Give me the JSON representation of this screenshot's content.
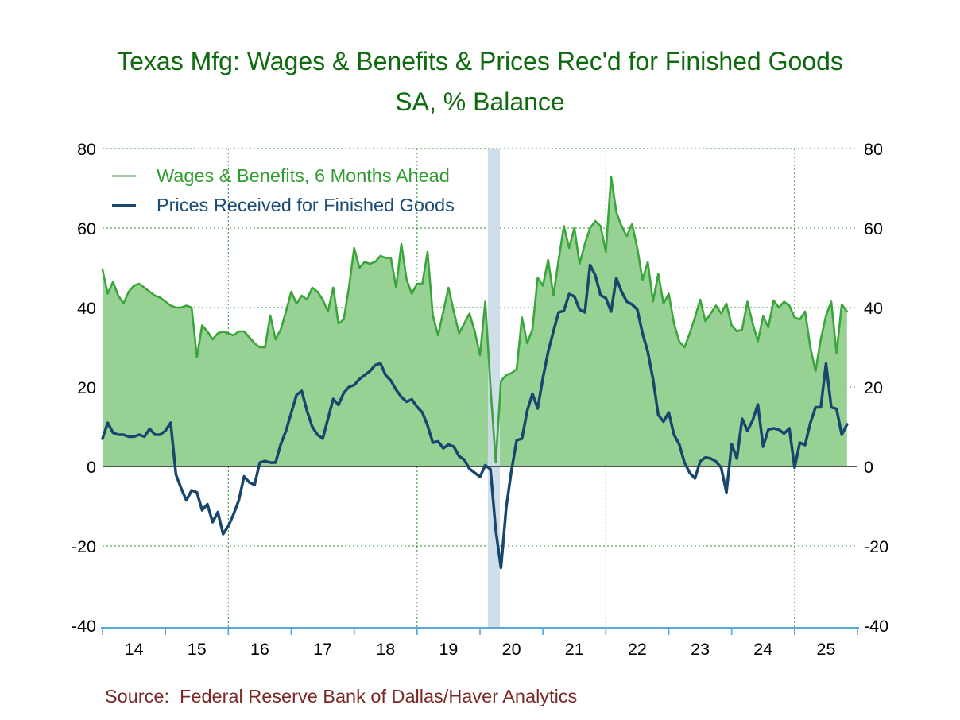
{
  "title": {
    "line1": "Texas Mfg: Wages & Benefits & Prices Rec'd for Finished Goods",
    "line2": "SA, % Balance",
    "color": "#0f6a0f"
  },
  "source": "Source:  Federal Reserve Bank of Dallas/Haver Analytics",
  "source_color": "#7a2823",
  "legend": [
    {
      "label": "Wages & Benefits, 6 Months Ahead",
      "text_color": "#2f9e2f",
      "swatch_color": "#9fce9f",
      "swatch_thickness": 3
    },
    {
      "label": "Prices Received for Finished Goods",
      "text_color": "#1b4a74",
      "swatch_color": "#17466e",
      "swatch_thickness": 4
    }
  ],
  "chart_data": {
    "type": "area",
    "start": "2014-01",
    "frequency": "monthly",
    "x_labels": [
      "14",
      "15",
      "16",
      "17",
      "18",
      "19",
      "20",
      "21",
      "22",
      "23",
      "24",
      "25"
    ],
    "y_ticks": [
      80,
      60,
      40,
      20,
      0,
      -20,
      -40
    ],
    "ylim": [
      -40,
      80
    ],
    "xlabel": "",
    "ylabel": "SA, % Balance",
    "grid": {
      "h_values": [
        80,
        60,
        40,
        20,
        -20
      ],
      "v_years": [
        2016,
        2019,
        2022,
        2025
      ],
      "color": "#2e8b2e",
      "style": "dashed"
    },
    "recession_band": {
      "from": "2020-02",
      "to": "2020-04",
      "color": "#ccdbe7"
    },
    "zero_line_color": "#1a1a1a",
    "axis_color": "#5ba8db",
    "tick_label_color": "#000000",
    "legend_position": "top-left",
    "series": [
      {
        "name": "Wages & Benefits, 6 Months Ahead",
        "type": "area",
        "fill_color": "#97d294",
        "line_color": "#3aa53a",
        "values": [
          49.5,
          43.5,
          46.5,
          43,
          41,
          44,
          45.5,
          46,
          45,
          44,
          43,
          42.5,
          41.5,
          40.5,
          40,
          40,
          40.5,
          40,
          27.5,
          35.5,
          34,
          32,
          33.5,
          34,
          33.5,
          33,
          34,
          34,
          32.5,
          31,
          30,
          30,
          38,
          32,
          34.5,
          39,
          44,
          41,
          43,
          42,
          45,
          44,
          42,
          39,
          45,
          36,
          37,
          45,
          55,
          50,
          51.5,
          51,
          51.5,
          53,
          52.5,
          52.5,
          45,
          56,
          47,
          43.5,
          46,
          46,
          54,
          38,
          33,
          39,
          45,
          39,
          33.5,
          36,
          38.5,
          34,
          28,
          41.5,
          20,
          1,
          21.5,
          23,
          23.5,
          24.5,
          37.5,
          31,
          34.5,
          47.5,
          45.5,
          52,
          43,
          52,
          60.5,
          55,
          60,
          51,
          56,
          60,
          61.8,
          60.5,
          54,
          73,
          64,
          60.5,
          58,
          61,
          55,
          47,
          51.5,
          41.5,
          48.5,
          41,
          43.5,
          36,
          31.5,
          30,
          33.5,
          37.5,
          42,
          36.5,
          38.5,
          40.5,
          38.5,
          41,
          35.5,
          34,
          34.5,
          41.5,
          36,
          31.5,
          37.8,
          35,
          41.8,
          40,
          41.5,
          40.5,
          37.5,
          37,
          39,
          30,
          24,
          32,
          38,
          41.5,
          28.5,
          40.8,
          39
        ]
      },
      {
        "name": "Prices Received for Finished Goods",
        "type": "line",
        "line_color": "#17466e",
        "values": [
          7,
          11,
          8.5,
          8,
          8,
          7.5,
          7.5,
          8,
          7.5,
          9.5,
          8,
          8,
          9,
          11,
          -2,
          -5.5,
          -8.5,
          -6,
          -6.5,
          -11,
          -9.5,
          -14,
          -11.5,
          -17,
          -15,
          -12,
          -8.5,
          -2.5,
          -4,
          -4.6,
          1,
          1.4,
          1,
          1,
          5.6,
          9,
          13.5,
          18,
          19,
          14,
          10,
          8,
          7,
          12,
          17,
          15.5,
          18.5,
          20,
          20.5,
          22,
          23,
          24,
          25.5,
          26,
          23,
          21.6,
          19.3,
          17.5,
          16.3,
          16.9,
          15,
          13.6,
          10.3,
          6,
          6.3,
          4.6,
          5.5,
          5,
          2.6,
          1.7,
          -0.6,
          -1.6,
          -2.6,
          0.3,
          -0.7,
          -16,
          -25.5,
          -10.3,
          -1,
          6.6,
          7,
          14,
          18.3,
          14.6,
          22.3,
          28.9,
          34,
          38.8,
          39.2,
          43.4,
          42.8,
          39.5,
          38.8,
          50.7,
          48.1,
          43.1,
          42.4,
          39,
          47.4,
          44,
          41.5,
          40.8,
          39.5,
          33.5,
          28.9,
          22,
          13,
          11.3,
          13.6,
          8,
          5.6,
          1,
          -1.6,
          -3,
          1.3,
          2.3,
          2,
          1.3,
          -0.3,
          -6.5,
          5.6,
          2,
          12,
          9,
          11.6,
          15.6,
          5,
          9.3,
          9.6,
          9.3,
          8.3,
          9.6,
          -0.3,
          6,
          5.4,
          10.9,
          14.9,
          14.9,
          25.9,
          14.9,
          14.5,
          8,
          10.6
        ]
      }
    ]
  }
}
